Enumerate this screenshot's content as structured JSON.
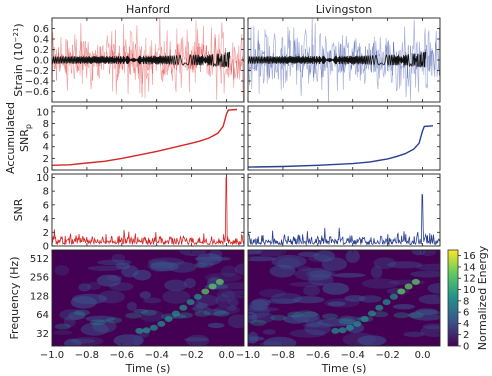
{
  "chart_data": {
    "type": "multi-panel",
    "columns": [
      {
        "title": "Hanford",
        "color": "#d62728",
        "light_color": "#f2a6a6"
      },
      {
        "title": "Livingston",
        "color": "#2a3f8f",
        "light_color": "#a9b2dd"
      }
    ],
    "x": {
      "label": "Time (s)",
      "range": [
        -1.0,
        0.1
      ],
      "ticks": [
        -1.0,
        -0.8,
        -0.6,
        -0.4,
        -0.2,
        0.0
      ],
      "tick_labels": [
        "−1.0",
        "−0.8",
        "−0.6",
        "−0.4",
        "−0.2",
        "0.0"
      ]
    },
    "rows": [
      {
        "type": "line",
        "ylabel": [
          "Strain (10",
          "−21",
          ")"
        ],
        "ylim": [
          -0.8,
          0.8
        ],
        "yticks": [
          -0.6,
          -0.4,
          -0.2,
          0.0,
          0.2,
          0.4,
          0.6
        ],
        "ytick_labels": [
          "−0.6",
          "−0.4",
          "−0.2",
          "0.0",
          "0.2",
          "0.4",
          "0.6"
        ],
        "description_series": [
          "whitened strain noise",
          "chirp template"
        ]
      },
      {
        "type": "line",
        "ylabel": [
          "Accumulated",
          "SNR",
          "p"
        ],
        "ylim": [
          0,
          11
        ],
        "yticks": [
          0,
          2,
          4,
          6,
          8,
          10
        ],
        "ytick_labels": [
          "0",
          "2",
          "4",
          "6",
          "8",
          "10"
        ],
        "series": [
          {
            "column": "Hanford",
            "x": [
              -1.0,
              -0.9,
              -0.8,
              -0.7,
              -0.6,
              -0.5,
              -0.4,
              -0.3,
              -0.2,
              -0.15,
              -0.1,
              -0.05,
              -0.02,
              0.0,
              0.01,
              0.06
            ],
            "y": [
              0.8,
              0.9,
              1.2,
              1.5,
              2.0,
              2.6,
              3.2,
              3.9,
              4.6,
              5.0,
              5.5,
              6.3,
              7.5,
              9.6,
              10.3,
              10.4
            ]
          },
          {
            "column": "Livingston",
            "x": [
              -1.0,
              -0.8,
              -0.6,
              -0.4,
              -0.3,
              -0.2,
              -0.15,
              -0.1,
              -0.05,
              -0.02,
              0.0,
              0.01,
              0.06
            ],
            "y": [
              0.5,
              0.6,
              0.8,
              1.1,
              1.4,
              1.9,
              2.3,
              2.8,
              3.6,
              4.6,
              6.7,
              7.5,
              7.6
            ]
          }
        ]
      },
      {
        "type": "line",
        "ylabel": [
          "SNR"
        ],
        "ylim": [
          0,
          10.5
        ],
        "yticks": [
          0,
          2,
          4,
          6,
          8,
          10
        ],
        "ytick_labels": [
          "0",
          "2",
          "4",
          "6",
          "8",
          "10"
        ],
        "series": [
          {
            "column": "Hanford",
            "noise_level": 1.0,
            "peak_x": 0.0,
            "peak_y": 10.0
          },
          {
            "column": "Livingston",
            "noise_level": 1.0,
            "peak_x": 0.0,
            "peak_y": 7.5
          }
        ]
      },
      {
        "type": "heatmap",
        "ylabel": [
          "Frequency (Hz)"
        ],
        "yscale": "log2",
        "ylim": [
          20,
          700
        ],
        "yticks": [
          32,
          64,
          128,
          256,
          512
        ],
        "ytick_labels": [
          "32",
          "64",
          "128",
          "256",
          "512"
        ],
        "colormap": [
          "#440154",
          "#3b528b",
          "#21908c",
          "#5dc963",
          "#fde725"
        ]
      }
    ],
    "colorbar": {
      "label": "Normalized Energy",
      "range": [
        0,
        17
      ],
      "ticks": [
        0,
        2,
        4,
        6,
        8,
        10,
        12,
        14,
        16
      ],
      "tick_labels": [
        "0",
        "2",
        "4",
        "6",
        "8",
        "10",
        "12",
        "14",
        "16"
      ]
    }
  }
}
